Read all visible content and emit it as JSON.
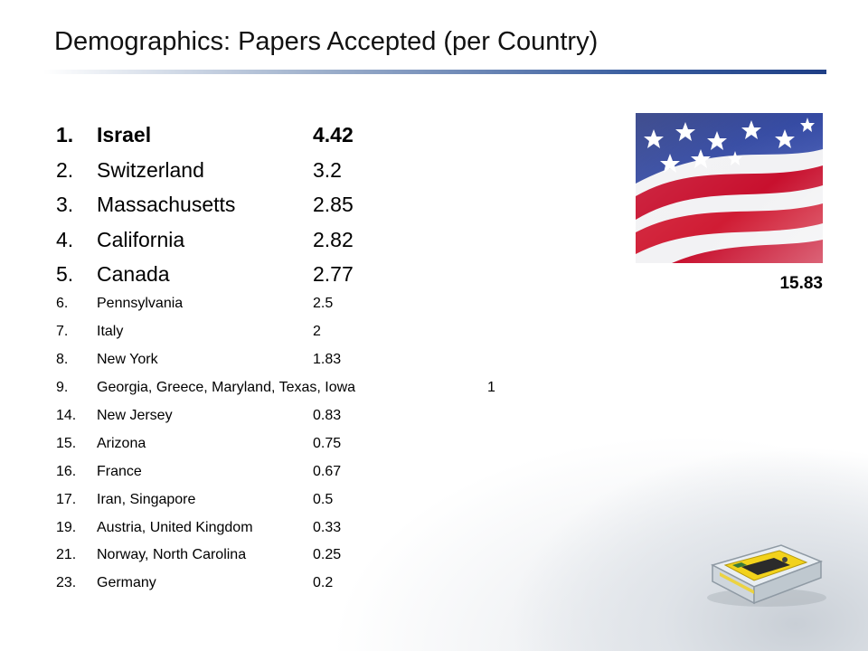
{
  "slide": {
    "title": "Demographics: Papers Accepted (per Country)",
    "flag_value": "15.83",
    "flag_icon": "us-flag-icon",
    "device_icon": "sensor-device-icon"
  },
  "rows": [
    {
      "num": "1.",
      "name": "Israel",
      "value": "4.42"
    },
    {
      "num": "2.",
      "name": "Switzerland",
      "value": "3.2"
    },
    {
      "num": "3.",
      "name": "Massachusetts",
      "value": "2.85"
    },
    {
      "num": "4.",
      "name": "California",
      "value": "2.82"
    },
    {
      "num": "5.",
      "name": "Canada",
      "value": "2.77"
    },
    {
      "num": "6.",
      "name": "Pennsylvania",
      "value": "2.5"
    },
    {
      "num": "7.",
      "name": "Italy",
      "value": "2"
    },
    {
      "num": "8.",
      "name": "New York",
      "value": "1.83"
    },
    {
      "num": "9.",
      "name": "Georgia, Greece, Maryland, Texas, Iowa",
      "value": "1"
    },
    {
      "num": "14.",
      "name": "New Jersey",
      "value": "0.83"
    },
    {
      "num": "15.",
      "name": "Arizona",
      "value": "0.75"
    },
    {
      "num": "16.",
      "name": "France",
      "value": "0.67"
    },
    {
      "num": "17.",
      "name": "Iran, Singapore",
      "value": "0.5"
    },
    {
      "num": "19.",
      "name": "Austria, United Kingdom",
      "value": "0.33"
    },
    {
      "num": "21.",
      "name": "Norway, North Carolina",
      "value": "0.25"
    },
    {
      "num": "23.",
      "name": "Germany",
      "value": "0.2"
    }
  ]
}
